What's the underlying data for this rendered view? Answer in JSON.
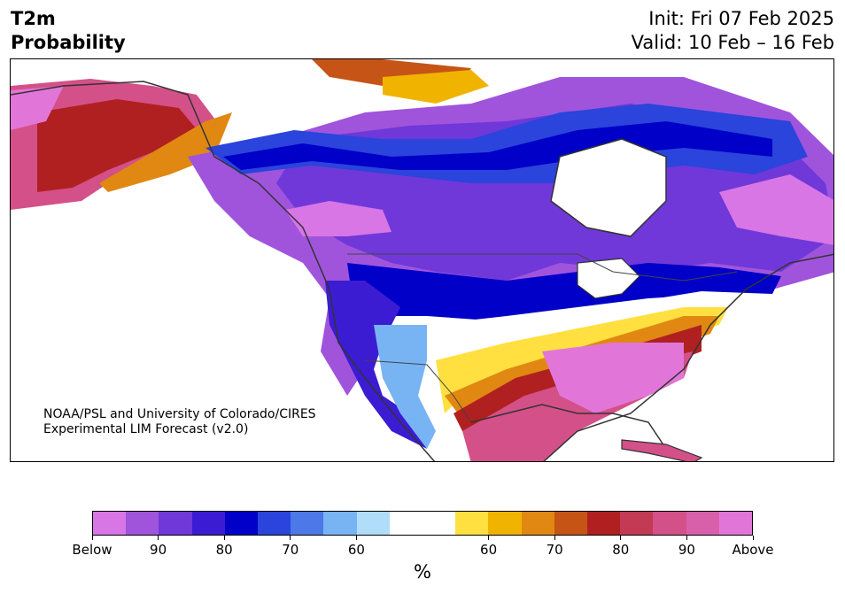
{
  "title": {
    "line1": "T2m",
    "line2": "Probability"
  },
  "init": "Init: Fri 07 Feb 2025",
  "valid": "Valid: 10 Feb – 16 Feb",
  "credit": {
    "line1": "NOAA/PSL and University of Colorado/CIRES",
    "line2": "Experimental LIM Forecast (v2.0)"
  },
  "colorbar": {
    "colors": [
      "#d876e6",
      "#a054dc",
      "#7038d8",
      "#3c1cd2",
      "#0000c8",
      "#2a44dc",
      "#4c78e8",
      "#78b4f4",
      "#b0ddfa",
      "#ffffff",
      "#ffffff",
      "#ffe040",
      "#f0b400",
      "#e08812",
      "#c65416",
      "#b02020",
      "#c23a54",
      "#d45088",
      "#d860aa",
      "#e276d8"
    ],
    "tick_labels": [
      "Below",
      "90",
      "80",
      "70",
      "60",
      "60",
      "70",
      "80",
      "90",
      "Above"
    ],
    "unit": "%"
  }
}
